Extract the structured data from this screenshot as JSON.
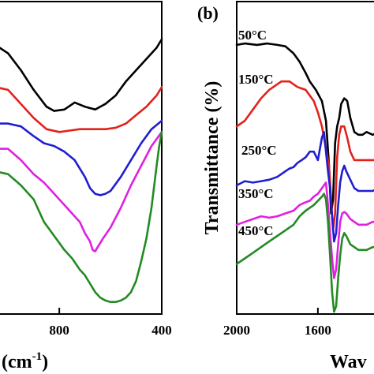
{
  "chart_data": [
    {
      "panel": "",
      "type": "line",
      "xlabel": "(cm",
      "xlabel_sup": "-1",
      "xlabel_tail": ")",
      "ylabel": "",
      "x_reversed": true,
      "xlim": [
        1050,
        400
      ],
      "ylim": [
        0,
        100
      ],
      "x_ticks": [
        800,
        400
      ],
      "series": [
        {
          "color": "#000000",
          "x": [
            1050,
            1000,
            950,
            900,
            850,
            820,
            780,
            740,
            700,
            660,
            620,
            580,
            540,
            500,
            460,
            420,
            400
          ],
          "y": [
            93,
            90,
            84,
            77,
            71,
            69.5,
            70,
            72.5,
            71,
            70,
            72,
            75,
            80,
            84,
            88,
            92,
            95
          ]
        },
        {
          "color": "#e3211c",
          "x": [
            1050,
            1000,
            950,
            900,
            850,
            800,
            760,
            720,
            680,
            650,
            620,
            580,
            540,
            500,
            460,
            420,
            400
          ],
          "y": [
            78,
            77,
            72,
            67,
            63,
            62,
            62.5,
            63,
            63,
            63,
            63,
            63.5,
            65,
            68,
            71,
            75,
            78
          ]
        },
        {
          "color": "#1f1fd0",
          "x": [
            1050,
            1000,
            950,
            900,
            860,
            820,
            780,
            740,
            700,
            680,
            660,
            640,
            620,
            600,
            560,
            520,
            480,
            440,
            400
          ],
          "y": [
            65,
            65,
            64,
            60.5,
            58,
            57,
            55,
            52,
            46,
            42,
            40,
            39.5,
            40,
            41,
            46,
            52,
            58,
            63,
            66
          ]
        },
        {
          "color": "#e020e0",
          "x": [
            1050,
            1000,
            950,
            900,
            860,
            820,
            780,
            740,
            720,
            700,
            680,
            670,
            660,
            650,
            630,
            600,
            560,
            520,
            480,
            440,
            400
          ],
          "y": [
            56,
            56,
            52,
            47,
            44,
            40,
            36,
            32,
            30,
            26,
            23,
            20,
            19.5,
            21,
            24,
            28,
            35,
            43,
            50,
            57,
            62
          ]
        },
        {
          "color": "#228b22",
          "x": [
            1050,
            1000,
            950,
            900,
            860,
            820,
            780,
            750,
            720,
            700,
            680,
            660,
            640,
            620,
            600,
            580,
            560,
            540,
            520,
            500,
            480,
            460,
            440,
            420,
            410,
            400
          ],
          "y": [
            48,
            47,
            43,
            38,
            30,
            25,
            20,
            17,
            13,
            11,
            8,
            5,
            3,
            2,
            1.5,
            1.5,
            2,
            3,
            5,
            9,
            16,
            24,
            35,
            50,
            57,
            62
          ]
        }
      ]
    },
    {
      "panel": "(b)",
      "type": "line",
      "xlabel": "Wav",
      "ylabel": "Transmittance (%)",
      "x_reversed": true,
      "xlim": [
        2000,
        1300
      ],
      "ylim": [
        0,
        100
      ],
      "x_ticks": [
        2000,
        1600
      ],
      "series": [
        {
          "name": "50°C",
          "color": "#000000",
          "x": [
            2000,
            1960,
            1900,
            1850,
            1800,
            1760,
            1720,
            1690,
            1660,
            1640,
            1610,
            1580,
            1560,
            1545,
            1535,
            1525,
            1515,
            1505,
            1495,
            1485,
            1470,
            1455,
            1440,
            1420,
            1400,
            1380,
            1360,
            1330,
            1300
          ],
          "y": [
            93,
            93.5,
            93,
            93.5,
            93,
            92.5,
            90,
            87,
            83,
            80,
            77,
            73,
            66,
            50,
            33,
            38,
            58,
            64,
            67,
            72,
            74,
            73,
            67,
            62,
            61,
            61,
            62,
            61,
            62
          ]
        },
        {
          "name": "150°C",
          "color": "#e3211c",
          "x": [
            2000,
            1960,
            1920,
            1880,
            1840,
            1800,
            1780,
            1760,
            1740,
            1720,
            1700,
            1680,
            1660,
            1640,
            1620,
            1600,
            1580,
            1570,
            1560,
            1545,
            1535,
            1525,
            1515,
            1505,
            1495,
            1485,
            1470,
            1455,
            1440,
            1420,
            1400,
            1360,
            1330,
            1300
          ],
          "y": [
            64,
            66,
            70,
            74,
            77,
            79,
            80,
            80,
            80,
            79,
            78,
            77.5,
            77,
            75,
            73,
            69,
            64,
            60,
            56,
            50,
            38,
            27,
            33,
            53,
            61,
            64,
            64,
            60,
            55,
            52,
            52,
            52,
            52,
            52
          ]
        },
        {
          "name": "250°C",
          "color": "#1f1fd0",
          "x": [
            2000,
            1960,
            1920,
            1880,
            1840,
            1800,
            1760,
            1740,
            1720,
            1700,
            1680,
            1660,
            1650,
            1640,
            1620,
            1600,
            1580,
            1570,
            1560,
            1550,
            1540,
            1530,
            1520,
            1510,
            1500,
            1490,
            1480,
            1470,
            1460,
            1440,
            1420,
            1400,
            1360,
            1330,
            1300
          ],
          "y": [
            43,
            44.5,
            44,
            44.5,
            45,
            46,
            48,
            49,
            49.5,
            51,
            52,
            53,
            54,
            55,
            55,
            52,
            60,
            62,
            55,
            48,
            42,
            32,
            23,
            26,
            36,
            44,
            48,
            50,
            48,
            45,
            42,
            41,
            41,
            41,
            42
          ]
        },
        {
          "name": "350°C",
          "color": "#e020e0",
          "x": [
            2000,
            1960,
            1920,
            1880,
            1840,
            1800,
            1760,
            1720,
            1690,
            1660,
            1640,
            1620,
            1600,
            1580,
            1570,
            1560,
            1550,
            1540,
            1530,
            1520,
            1510,
            1500,
            1490,
            1480,
            1470,
            1460,
            1440,
            1420,
            1400,
            1360,
            1330,
            1300
          ],
          "y": [
            29,
            30,
            31,
            32,
            31.5,
            32,
            33,
            34,
            36,
            37,
            37.5,
            39,
            40,
            42,
            43,
            44,
            36,
            26,
            17,
            10,
            13,
            22,
            30,
            33,
            33.5,
            33,
            31,
            30,
            29,
            29,
            30,
            30
          ]
        },
        {
          "name": "450°C",
          "color": "#228b22",
          "x": [
            2000,
            1960,
            1920,
            1880,
            1840,
            1800,
            1760,
            1720,
            1690,
            1660,
            1640,
            1620,
            1600,
            1580,
            1570,
            1560,
            1550,
            1540,
            1530,
            1520,
            1510,
            1500,
            1490,
            1480,
            1470,
            1460,
            1440,
            1420,
            1400,
            1360,
            1330,
            1300
          ],
          "y": [
            15,
            17,
            19,
            21,
            23,
            25,
            27,
            29,
            32,
            34,
            35,
            36,
            37.5,
            39,
            40,
            38,
            30,
            18,
            5,
            -2,
            0,
            10,
            18,
            24,
            26,
            25,
            22,
            21,
            20,
            20,
            21,
            21
          ]
        }
      ]
    }
  ]
}
